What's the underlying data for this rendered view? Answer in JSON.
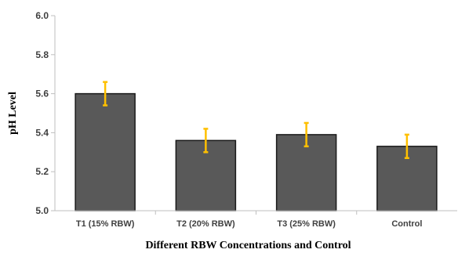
{
  "chart_data": {
    "type": "bar",
    "categories": [
      "T1 (15% RBW)",
      "T2 (20% RBW)",
      "T3 (25% RBW)",
      "Control"
    ],
    "values": [
      5.6,
      5.36,
      5.39,
      5.33
    ],
    "errors": [
      0.06,
      0.06,
      0.06,
      0.06
    ],
    "title": "",
    "xlabel": "Different RBW Concentrations and Control",
    "ylabel": "pH Level",
    "ylim": [
      5.0,
      6.0
    ],
    "yticks": [
      "5.0",
      "5.2",
      "5.4",
      "5.6",
      "5.8",
      "6.0"
    ],
    "grid": false,
    "legend": "none",
    "colors": {
      "bar_fill": "#595959",
      "bar_stroke": "#1a1a1a",
      "error_bar": "#FFC000",
      "axis": "#bfbfbf"
    }
  }
}
